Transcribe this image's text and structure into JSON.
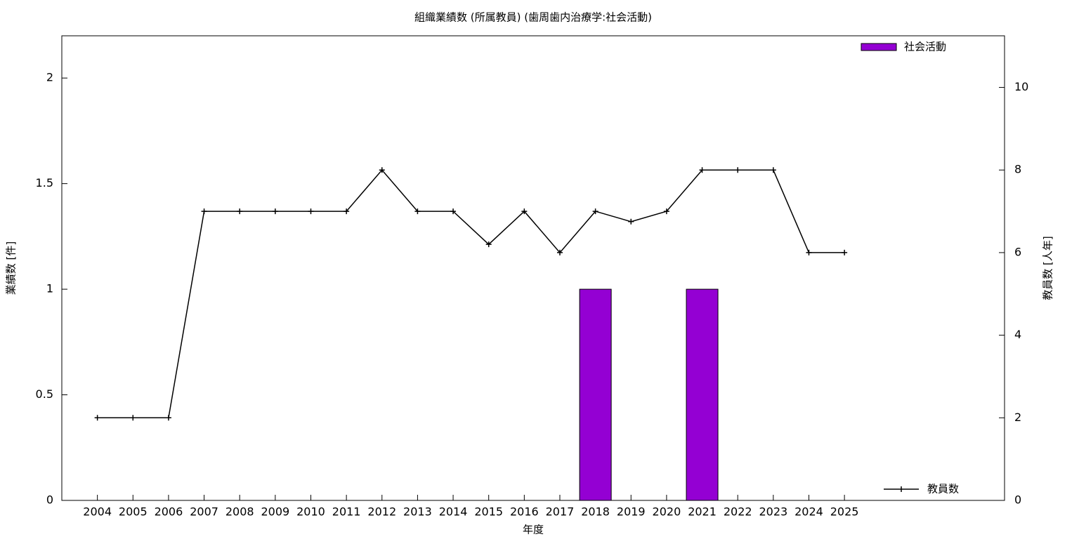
{
  "chart_data": {
    "type": "bar_line",
    "title": "組織業績数 (所属教員) (歯周歯内治療学:社会活動)",
    "x_label": "年度",
    "y_label": "業績数 [件]",
    "y2_label": "教員数 [人年]",
    "categories": [
      "2004",
      "2005",
      "2006",
      "2007",
      "2008",
      "2009",
      "2010",
      "2011",
      "2012",
      "2013",
      "2014",
      "2015",
      "2016",
      "2017",
      "2018",
      "2019",
      "2020",
      "2021",
      "2022",
      "2023",
      "2024",
      "2025"
    ],
    "series": [
      {
        "name": "社会活動",
        "type": "bar",
        "color": "#9400d3",
        "values": [
          0,
          0,
          0,
          0,
          0,
          0,
          0,
          0,
          0,
          0,
          0,
          0,
          0,
          0,
          1,
          0,
          0,
          1,
          0,
          0,
          0,
          0
        ]
      },
      {
        "name": "教員数",
        "type": "line",
        "axis": "y2",
        "color": "#000000",
        "values": [
          2,
          2,
          2,
          7,
          7,
          7,
          7,
          7,
          8,
          7,
          7,
          6.2,
          7,
          6,
          7,
          6.75,
          7,
          8,
          8,
          8,
          6,
          6
        ]
      }
    ],
    "ylim": [
      0,
      2.2
    ],
    "yticks": [
      0,
      0.5,
      1,
      1.5,
      2
    ],
    "y2lim": [
      0,
      11.25
    ],
    "y2ticks": [
      0,
      2,
      4,
      6,
      8,
      10
    ]
  }
}
